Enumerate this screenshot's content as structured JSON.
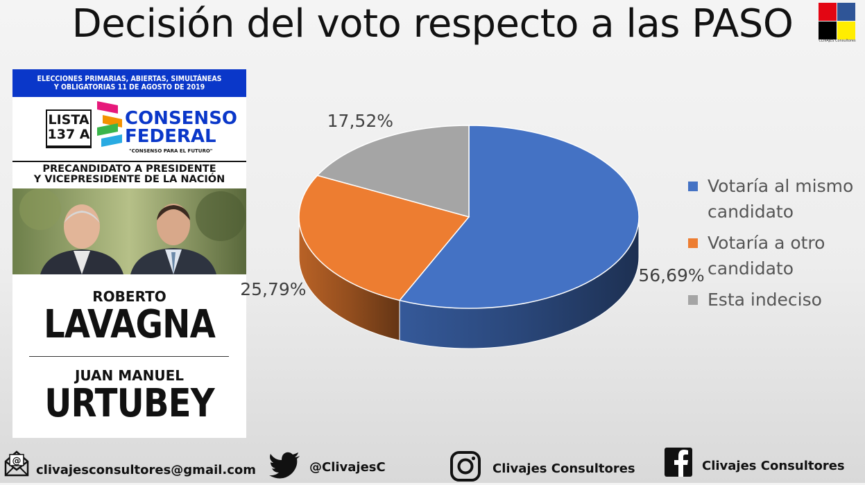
{
  "title": "Decisión del voto respecto a las PASO",
  "logo": {
    "text": "CLIVAJES Consultores"
  },
  "ballot": {
    "header_line1": "ELECCIONES PRIMARIAS, ABIERTAS, SIMULTÁNEAS",
    "header_line2": "Y OBLIGATORIAS 11 DE AGOSTO DE 2019",
    "lista_line1": "LISTA",
    "lista_line2": "137 A",
    "party_line1": "CONSENSO",
    "party_line2": "FEDERAL",
    "party_slogan": "\"CONSENSO PARA EL FUTURO\"",
    "role_line1": "PRECANDIDATO A PRESIDENTE",
    "role_line2": "Y VICEPRESIDENTE DE LA NACIÓN",
    "candidate1_first": "ROBERTO",
    "candidate1_last": "LAVAGNA",
    "candidate2_first": "JUAN MANUEL",
    "candidate2_last": "URTUBEY"
  },
  "chart_data": {
    "type": "pie",
    "title": "Decisión del voto respecto a las PASO",
    "legend_position": "right",
    "slices": [
      {
        "name": "Votaría al mismo candidato",
        "value": 56.69,
        "label": "56,69%",
        "color": "#4472c4"
      },
      {
        "name": "Votaría a otro candidato",
        "value": 25.79,
        "label": "25,79%",
        "color": "#ed7d31"
      },
      {
        "name": "Esta indeciso",
        "value": 17.52,
        "label": "17,52%",
        "color": "#a5a5a5"
      }
    ]
  },
  "legend": [
    {
      "line1": "Votaría al mismo",
      "line2": "candidato",
      "color": "#4472c4"
    },
    {
      "line1": "Votaría a otro",
      "line2": "candidato",
      "color": "#ed7d31"
    },
    {
      "line1": "Esta indeciso",
      "line2": "",
      "color": "#a5a5a5"
    }
  ],
  "footer": {
    "email": "clivajesconsultores@gmail.com",
    "twitter": "@ClivajesC",
    "instagram": "Clivajes Consultores",
    "facebook": "Clivajes Consultores",
    "email_icon": "email-icon",
    "twitter_icon": "twitter-icon",
    "instagram_icon": "instagram-icon",
    "facebook_icon": "facebook-icon"
  }
}
